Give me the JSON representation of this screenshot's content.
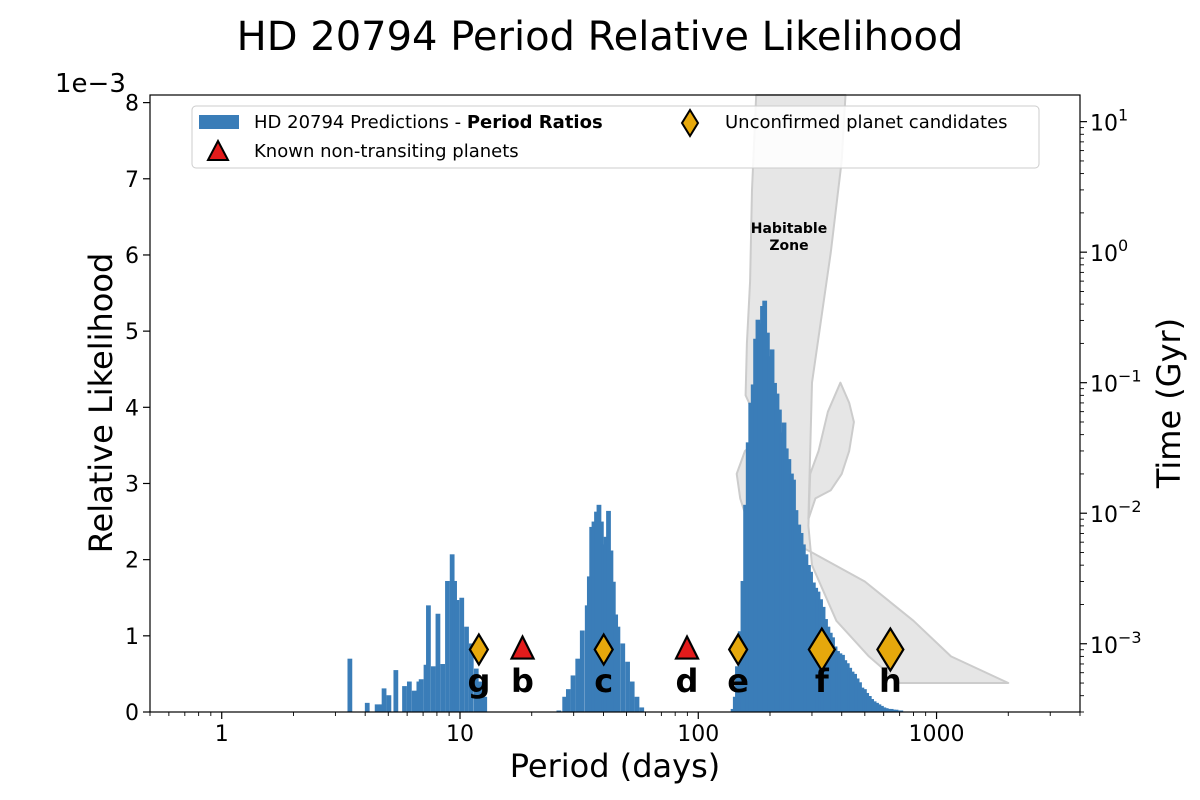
{
  "chart_data": {
    "type": "bar",
    "title": "HD 20794 Period Relative Likelihood",
    "xlabel": "Period (days)",
    "ylabel": "Relative Likelihood",
    "y2label": "Time (Gyr)",
    "y_offset_text": "1e−3",
    "xscale": "log",
    "xlim": [
      0.5,
      4000
    ],
    "ylim": [
      0,
      8.1
    ],
    "y2lim": [
      0.0003,
      16
    ],
    "xticks": [
      {
        "value": 1,
        "label": "1"
      },
      {
        "value": 10,
        "label": "10"
      },
      {
        "value": 100,
        "label": "100"
      },
      {
        "value": 1000,
        "label": "1000"
      }
    ],
    "yticks": [
      {
        "value": 0,
        "label": "0"
      },
      {
        "value": 1,
        "label": "1"
      },
      {
        "value": 2,
        "label": "2"
      },
      {
        "value": 3,
        "label": "3"
      },
      {
        "value": 4,
        "label": "4"
      },
      {
        "value": 5,
        "label": "5"
      },
      {
        "value": 6,
        "label": "6"
      },
      {
        "value": 7,
        "label": "7"
      },
      {
        "value": 8,
        "label": "8"
      }
    ],
    "y2ticks": [
      {
        "value": 0.001,
        "base": "10",
        "exp": "−3"
      },
      {
        "value": 0.01,
        "base": "10",
        "exp": "−2"
      },
      {
        "value": 0.1,
        "base": "10",
        "exp": "−1"
      },
      {
        "value": 1,
        "base": "10",
        "exp": "0"
      },
      {
        "value": 10,
        "base": "10",
        "exp": "1"
      }
    ],
    "legend": {
      "placement": "top",
      "predictions_prefix": "HD 20794 Predictions - ",
      "predictions_bold": "Period Ratios",
      "known_label": "Known non-transiting planets",
      "candidate_label": "Unconfirmed planet candidates"
    },
    "colors": {
      "bars": "#3a7db8",
      "triangle": "#e31b1b",
      "diamond": "#e6a80c",
      "hz_fill": "#e6e6e6",
      "hz_edge": "#cccccc"
    },
    "habitable_zone": {
      "label_line1": "Habitable",
      "label_line2": "Zone",
      "polygon_period_time": [
        [
          175,
          16
        ],
        [
          168,
          3
        ],
        [
          165,
          0.6
        ],
        [
          160,
          0.2
        ],
        [
          158,
          0.08
        ],
        [
          178,
          0.05
        ],
        [
          175,
          0.035
        ],
        [
          157,
          0.03
        ],
        [
          145,
          0.02
        ],
        [
          150,
          0.013
        ],
        [
          160,
          0.009
        ],
        [
          210,
          0.007
        ],
        [
          300,
          0.005
        ],
        [
          500,
          0.003
        ],
        [
          800,
          0.0015
        ],
        [
          1150,
          0.0008
        ],
        [
          2000,
          0.0005
        ],
        [
          700,
          0.0005
        ],
        [
          520,
          0.0008
        ],
        [
          380,
          0.0015
        ],
        [
          300,
          0.004
        ],
        [
          290,
          0.008
        ],
        [
          295,
          0.02
        ],
        [
          320,
          0.03
        ],
        [
          350,
          0.06
        ],
        [
          395,
          0.1
        ],
        [
          430,
          0.07
        ],
        [
          450,
          0.05
        ],
        [
          430,
          0.03
        ],
        [
          400,
          0.02
        ],
        [
          360,
          0.015
        ],
        [
          310,
          0.013
        ],
        [
          290,
          0.009
        ],
        [
          300,
          0.1
        ],
        [
          360,
          1
        ],
        [
          400,
          5
        ],
        [
          415,
          16
        ]
      ]
    },
    "histogram": {
      "bin_width_log10": 0.02,
      "bars": [
        [
          3.45,
          0.7
        ],
        [
          4.08,
          0.12
        ],
        [
          4.49,
          0.1
        ],
        [
          4.69,
          0.1
        ],
        [
          4.8,
          0.31
        ],
        [
          5.03,
          0.22
        ],
        [
          5.38,
          0.55
        ],
        [
          5.85,
          0.34
        ],
        [
          6.13,
          0.4
        ],
        [
          6.42,
          0.28
        ],
        [
          6.72,
          0.4
        ],
        [
          6.87,
          0.43
        ],
        [
          7.2,
          0.62
        ],
        [
          7.37,
          1.4
        ],
        [
          7.72,
          0.6
        ],
        [
          8.08,
          1.29
        ],
        [
          8.46,
          0.63
        ],
        [
          8.86,
          1.72
        ],
        [
          9.27,
          2.07
        ],
        [
          9.49,
          1.72
        ],
        [
          9.71,
          1.47
        ],
        [
          10.17,
          1.5
        ],
        [
          10.65,
          1.12
        ],
        [
          11.15,
          0.9
        ],
        [
          11.7,
          0.57
        ],
        [
          12.2,
          0.4
        ],
        [
          12.7,
          0.2
        ],
        [
          26.0,
          0.02
        ],
        [
          27.5,
          0.2
        ],
        [
          28.5,
          0.3
        ],
        [
          29.8,
          0.48
        ],
        [
          31.2,
          0.7
        ],
        [
          32.6,
          1.07
        ],
        [
          34.2,
          1.4
        ],
        [
          34.9,
          1.78
        ],
        [
          35.7,
          2.43
        ],
        [
          36.5,
          2.5
        ],
        [
          37.4,
          2.63
        ],
        [
          38.3,
          2.72
        ],
        [
          39.2,
          2.5
        ],
        [
          40.1,
          2.2
        ],
        [
          41.0,
          2.3
        ],
        [
          42.0,
          2.64
        ],
        [
          43.0,
          2.12
        ],
        [
          44.0,
          1.71
        ],
        [
          45.0,
          1.28
        ],
        [
          46.0,
          1.12
        ],
        [
          48.2,
          0.9
        ],
        [
          50.5,
          0.66
        ],
        [
          52.8,
          0.4
        ],
        [
          55.3,
          0.2
        ],
        [
          57.9,
          0.06
        ],
        [
          140,
          0.04
        ],
        [
          143,
          0.2
        ],
        [
          146,
          0.6
        ],
        [
          150,
          1.06
        ],
        [
          154,
          1.72
        ],
        [
          158,
          2.72
        ],
        [
          162,
          3.54
        ],
        [
          166,
          4.06
        ],
        [
          170,
          4.3
        ],
        [
          174,
          4.9
        ],
        [
          178,
          5.15
        ],
        [
          182,
          5.1
        ],
        [
          186,
          5.33
        ],
        [
          190,
          5.4
        ],
        [
          195,
          4.98
        ],
        [
          199,
          4.67
        ],
        [
          204,
          4.76
        ],
        [
          209,
          4.32
        ],
        [
          214,
          4.18
        ],
        [
          219,
          3.97
        ],
        [
          224,
          3.67
        ],
        [
          229,
          3.8
        ],
        [
          234,
          3.46
        ],
        [
          240,
          3.32
        ],
        [
          246,
          3.13
        ],
        [
          251,
          3.05
        ],
        [
          257,
          2.65
        ],
        [
          264,
          2.46
        ],
        [
          270,
          2.35
        ],
        [
          276,
          2.2
        ],
        [
          283,
          2.07
        ],
        [
          290,
          1.93
        ],
        [
          296,
          1.84
        ],
        [
          304,
          1.7
        ],
        [
          311,
          1.63
        ],
        [
          318,
          1.58
        ],
        [
          326,
          1.48
        ],
        [
          334,
          1.38
        ],
        [
          342,
          1.22
        ],
        [
          350,
          1.12
        ],
        [
          358,
          1.04
        ],
        [
          366,
          0.98
        ],
        [
          375,
          0.86
        ],
        [
          384,
          0.8
        ],
        [
          393,
          0.77
        ],
        [
          403,
          0.75
        ],
        [
          412,
          0.68
        ],
        [
          422,
          0.64
        ],
        [
          432,
          0.58
        ],
        [
          442,
          0.53
        ],
        [
          453,
          0.5
        ],
        [
          464,
          0.44
        ],
        [
          475,
          0.39
        ],
        [
          486,
          0.32
        ],
        [
          498,
          0.3
        ],
        [
          509,
          0.25
        ],
        [
          522,
          0.21
        ],
        [
          534,
          0.17
        ],
        [
          547,
          0.14
        ],
        [
          560,
          0.12
        ],
        [
          573,
          0.1
        ],
        [
          587,
          0.08
        ],
        [
          601,
          0.06
        ],
        [
          615,
          0.05
        ],
        [
          630,
          0.04
        ],
        [
          645,
          0.04
        ],
        [
          660,
          0.03
        ],
        [
          676,
          0.03
        ],
        [
          692,
          0.02
        ],
        [
          708,
          0.02
        ]
      ]
    },
    "planets": [
      {
        "name": "g",
        "period": 12.0,
        "type": "candidate",
        "size": "small"
      },
      {
        "name": "b",
        "period": 18.3,
        "type": "known",
        "size": "small"
      },
      {
        "name": "c",
        "period": 40.1,
        "type": "candidate",
        "size": "small"
      },
      {
        "name": "d",
        "period": 89.7,
        "type": "known",
        "size": "small"
      },
      {
        "name": "e",
        "period": 147,
        "type": "candidate",
        "size": "small"
      },
      {
        "name": "f",
        "period": 330,
        "type": "candidate",
        "size": "large"
      },
      {
        "name": "h",
        "period": 640,
        "type": "candidate",
        "size": "large"
      }
    ],
    "marker_level": 0.82
  }
}
